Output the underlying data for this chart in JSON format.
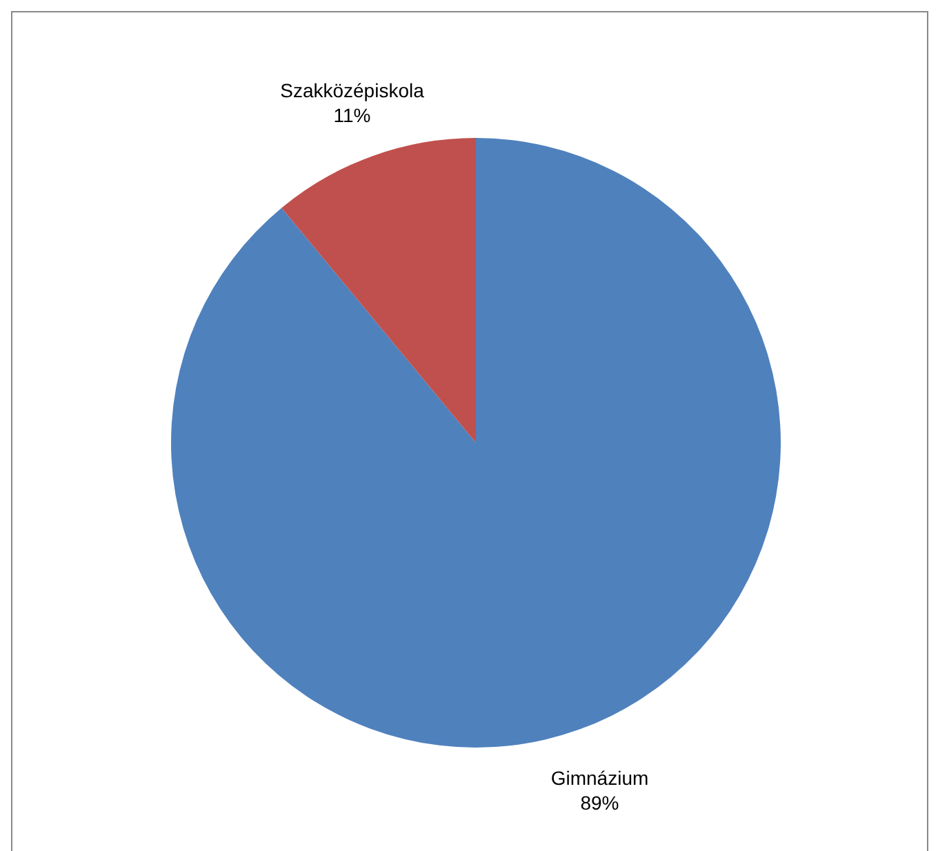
{
  "chart_data": {
    "type": "pie",
    "categories": [
      "Gimnázium",
      "Szakközépiskola"
    ],
    "values": [
      89,
      11
    ],
    "colors": [
      "#4f81bd",
      "#c0504d"
    ],
    "value_labels": [
      "89%",
      "11%"
    ],
    "legend": false
  }
}
